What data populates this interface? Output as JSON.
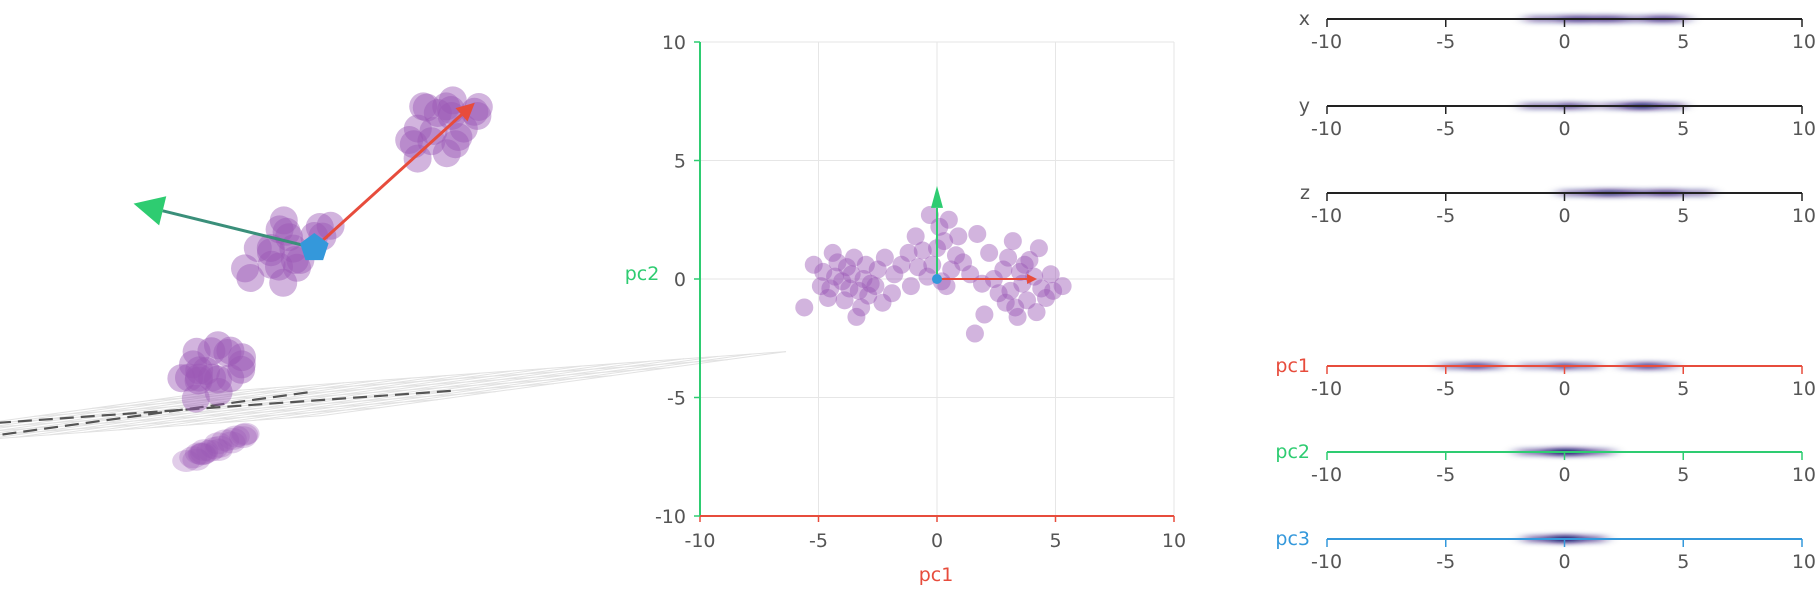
{
  "colors": {
    "point": "#9b59b6",
    "pc1": "#e74c3c",
    "pc2": "#2ecc71",
    "pc3": "#3498db",
    "axis_text": "#555555",
    "grid": "#e6e6e6",
    "density": "#1a0a6e"
  },
  "chart_data": [
    {
      "type": "scatter",
      "title": "",
      "view": "3d-perspective",
      "grid": true,
      "series": [
        {
          "points": [
            [
              1.8,
              2.6,
              1.6
            ],
            [
              2.2,
              3.1,
              1.8
            ],
            [
              1.5,
              2.9,
              2.2
            ],
            [
              2.6,
              2.4,
              1.4
            ],
            [
              1.9,
              3.4,
              2.0
            ],
            [
              2.4,
              2.8,
              2.5
            ],
            [
              1.2,
              2.5,
              1.7
            ],
            [
              2.9,
              3.0,
              1.9
            ],
            [
              2.1,
              2.2,
              2.1
            ],
            [
              1.6,
              3.2,
              1.5
            ],
            [
              2.7,
              2.7,
              2.3
            ],
            [
              2.0,
              2.0,
              1.6
            ],
            [
              1.4,
              3.0,
              2.4
            ],
            [
              2.5,
              3.3,
              1.2
            ],
            [
              1.8,
              2.4,
              2.6
            ],
            [
              2.3,
              2.5,
              1.0
            ],
            [
              3.1,
              2.9,
              2.0
            ],
            [
              1.0,
              2.8,
              1.9
            ],
            [
              2.2,
              3.6,
              1.7
            ],
            [
              1.7,
              2.7,
              2.8
            ],
            [
              4.6,
              3.8,
              4.1
            ],
            [
              5.0,
              4.2,
              4.4
            ],
            [
              4.3,
              4.0,
              4.8
            ],
            [
              5.3,
              3.6,
              4.0
            ],
            [
              4.8,
              4.5,
              4.6
            ],
            [
              4.1,
              3.5,
              4.3
            ],
            [
              5.5,
              4.1,
              4.7
            ],
            [
              4.5,
              4.3,
              3.8
            ],
            [
              4.9,
              3.7,
              5.0
            ],
            [
              5.2,
              4.6,
              4.2
            ],
            [
              4.4,
              4.7,
              4.5
            ],
            [
              4.7,
              3.4,
              4.9
            ],
            [
              5.6,
              3.9,
              4.4
            ],
            [
              4.2,
              4.1,
              3.9
            ],
            [
              5.1,
              4.0,
              5.2
            ],
            [
              4.6,
              4.8,
              4.0
            ],
            [
              3.9,
              3.9,
              4.6
            ],
            [
              5.4,
              4.4,
              3.7
            ],
            [
              4.8,
              3.3,
              4.3
            ],
            [
              4.3,
              4.4,
              5.1
            ],
            [
              0.4,
              0.6,
              0.3
            ],
            [
              0.9,
              0.2,
              0.7
            ],
            [
              0.2,
              1.0,
              0.5
            ],
            [
              0.7,
              0.7,
              0.1
            ],
            [
              0.5,
              0.3,
              0.9
            ],
            [
              1.1,
              0.9,
              0.4
            ],
            [
              0.1,
              0.5,
              0.8
            ],
            [
              0.8,
              1.2,
              0.6
            ],
            [
              0.3,
              0.1,
              0.2
            ],
            [
              1.0,
              0.4,
              1.1
            ],
            [
              0.6,
              0.8,
              0.0
            ],
            [
              0.0,
              0.7,
              0.6
            ],
            [
              1.2,
              0.6,
              0.8
            ],
            [
              0.4,
              1.1,
              1.0
            ],
            [
              0.8,
              0.0,
              0.3
            ],
            [
              0.2,
              0.4,
              1.2
            ],
            [
              0.9,
              0.9,
              0.9
            ],
            [
              0.5,
              1.3,
              0.2
            ],
            [
              1.3,
              0.3,
              0.5
            ],
            [
              0.1,
              0.8,
              0.1
            ]
          ]
        }
      ]
    },
    {
      "type": "scatter",
      "title": "",
      "xlabel": "pc1",
      "ylabel": "pc2",
      "xlim": [
        -10,
        10
      ],
      "ylim": [
        -10,
        10
      ],
      "xticks": [
        "-10",
        "-5",
        "0",
        "5",
        "10"
      ],
      "yticks": [
        "10",
        "5",
        "0",
        "-5",
        "-10"
      ],
      "grid": true,
      "series": [
        {
          "points": [
            [
              -4.8,
              0.3
            ],
            [
              -4.5,
              -0.4
            ],
            [
              -4.2,
              0.7
            ],
            [
              -3.9,
              -0.9
            ],
            [
              -3.6,
              0.2
            ],
            [
              -3.3,
              -0.5
            ],
            [
              -3.0,
              0.6
            ],
            [
              -2.8,
              -0.2
            ],
            [
              -4.0,
              -0.1
            ],
            [
              -3.5,
              0.9
            ],
            [
              -3.2,
              -1.2
            ],
            [
              -2.5,
              0.4
            ],
            [
              -4.6,
              -0.8
            ],
            [
              -3.8,
              0.5
            ],
            [
              -2.9,
              -0.7
            ],
            [
              -4.3,
              0.1
            ],
            [
              -3.1,
              0.0
            ],
            [
              -3.7,
              -0.4
            ],
            [
              -2.6,
              -0.3
            ],
            [
              -4.9,
              -0.3
            ],
            [
              -5.6,
              -1.2
            ],
            [
              -2.2,
              0.9
            ],
            [
              -1.8,
              0.2
            ],
            [
              -1.9,
              -0.6
            ],
            [
              -5.2,
              0.6
            ],
            [
              -3.4,
              -1.6
            ],
            [
              -4.4,
              1.1
            ],
            [
              -2.3,
              -1.0
            ],
            [
              -0.6,
              1.2
            ],
            [
              -0.2,
              0.6
            ],
            [
              0.3,
              1.6
            ],
            [
              0.6,
              0.4
            ],
            [
              0.1,
              2.2
            ],
            [
              -0.4,
              0.1
            ],
            [
              0.8,
              1.0
            ],
            [
              -0.8,
              0.5
            ],
            [
              0.4,
              -0.3
            ],
            [
              0.9,
              1.8
            ],
            [
              -0.3,
              2.7
            ],
            [
              0.2,
              -0.1
            ],
            [
              1.1,
              0.7
            ],
            [
              -1.2,
              1.1
            ],
            [
              0.5,
              2.5
            ],
            [
              1.4,
              0.2
            ],
            [
              -0.9,
              1.8
            ],
            [
              0.0,
              1.3
            ],
            [
              -1.5,
              0.6
            ],
            [
              1.7,
              1.9
            ],
            [
              -1.1,
              -0.3
            ],
            [
              3.1,
              -0.5
            ],
            [
              3.5,
              0.3
            ],
            [
              3.8,
              -0.9
            ],
            [
              4.1,
              0.1
            ],
            [
              2.8,
              0.4
            ],
            [
              3.3,
              -1.2
            ],
            [
              4.4,
              -0.4
            ],
            [
              2.6,
              -0.6
            ],
            [
              3.9,
              0.8
            ],
            [
              4.6,
              -0.8
            ],
            [
              3.0,
              0.9
            ],
            [
              3.6,
              -0.2
            ],
            [
              4.2,
              -1.4
            ],
            [
              2.4,
              0.0
            ],
            [
              4.8,
              0.2
            ],
            [
              3.4,
              -1.6
            ],
            [
              4.3,
              1.3
            ],
            [
              2.9,
              -1.0
            ],
            [
              4.9,
              -0.5
            ],
            [
              3.7,
              0.6
            ],
            [
              1.9,
              -0.2
            ],
            [
              2.2,
              1.1
            ],
            [
              1.6,
              -2.3
            ],
            [
              5.3,
              -0.3
            ],
            [
              3.2,
              1.6
            ],
            [
              2.0,
              -1.5
            ]
          ]
        }
      ]
    },
    {
      "type": "strip",
      "rows": [
        {
          "name": "x",
          "xlim": [
            -10,
            10
          ],
          "xticks": [
            "-10",
            "-5",
            "0",
            "5",
            "10"
          ],
          "values": [
            -1.4,
            -1.0,
            -0.6,
            -0.2,
            0.0,
            0.3,
            0.6,
            0.9,
            1.2,
            1.5,
            1.8,
            2.1,
            2.5,
            2.9,
            3.3,
            3.7,
            4.0,
            4.3,
            4.6,
            5.0,
            0.4,
            0.9,
            1.6,
            2.2,
            3.8,
            4.4
          ]
        },
        {
          "name": "y",
          "xlim": [
            -10,
            10
          ],
          "xticks": [
            "-10",
            "-5",
            "0",
            "5",
            "10"
          ],
          "values": [
            -1.6,
            -1.2,
            -0.8,
            -0.4,
            0.0,
            0.3,
            0.7,
            1.1,
            1.8,
            2.2,
            2.6,
            2.9,
            3.1,
            3.3,
            3.5,
            3.7,
            3.9,
            4.2,
            4.5,
            4.8,
            2.7,
            3.0,
            3.2,
            3.4,
            3.6,
            0.2
          ]
        },
        {
          "name": "z",
          "xlim": [
            -10,
            10
          ],
          "xticks": [
            "-10",
            "-5",
            "0",
            "5",
            "10"
          ],
          "values": [
            0.0,
            0.4,
            0.8,
            1.0,
            1.3,
            1.6,
            1.9,
            2.2,
            2.5,
            2.8,
            3.0,
            3.3,
            3.6,
            3.9,
            4.2,
            4.5,
            4.8,
            5.2,
            5.6,
            6.0,
            1.5,
            2.0,
            2.4,
            4.0,
            4.6,
            1.8
          ]
        },
        {
          "name": "pc1",
          "xlim": [
            -10,
            10
          ],
          "xticks": [
            "-10",
            "-5",
            "0",
            "5",
            "10"
          ],
          "values": [
            -5.0,
            -4.6,
            -4.2,
            -3.8,
            -3.5,
            -3.2,
            -2.8,
            -1.6,
            -1.0,
            -0.5,
            -0.2,
            0.1,
            0.4,
            0.8,
            1.2,
            2.6,
            3.0,
            3.3,
            3.6,
            4.0,
            4.4,
            -3.6,
            0.0,
            3.4,
            -4.0,
            3.8
          ]
        },
        {
          "name": "pc2",
          "xlim": [
            -10,
            10
          ],
          "xticks": [
            "-10",
            "-5",
            "0",
            "5",
            "10"
          ],
          "values": [
            -1.8,
            -1.4,
            -1.1,
            -0.8,
            -0.6,
            -0.4,
            -0.2,
            -0.1,
            0.0,
            0.1,
            0.2,
            0.3,
            0.5,
            0.7,
            0.9,
            1.1,
            1.4,
            1.8,
            -0.3,
            0.0,
            0.4,
            -0.5,
            0.6,
            0.1,
            -0.1,
            0.2
          ]
        },
        {
          "name": "pc3",
          "xlim": [
            -10,
            10
          ],
          "xticks": [
            "-10",
            "-5",
            "0",
            "5",
            "10"
          ],
          "values": [
            -1.5,
            -1.2,
            -0.9,
            -0.7,
            -0.5,
            -0.3,
            -0.2,
            -0.1,
            0.0,
            0.0,
            0.1,
            0.2,
            0.3,
            0.5,
            0.7,
            0.9,
            1.2,
            1.5,
            -0.4,
            0.1,
            0.4,
            -0.1,
            0.2,
            0.0,
            -0.2,
            0.3
          ]
        }
      ]
    }
  ]
}
